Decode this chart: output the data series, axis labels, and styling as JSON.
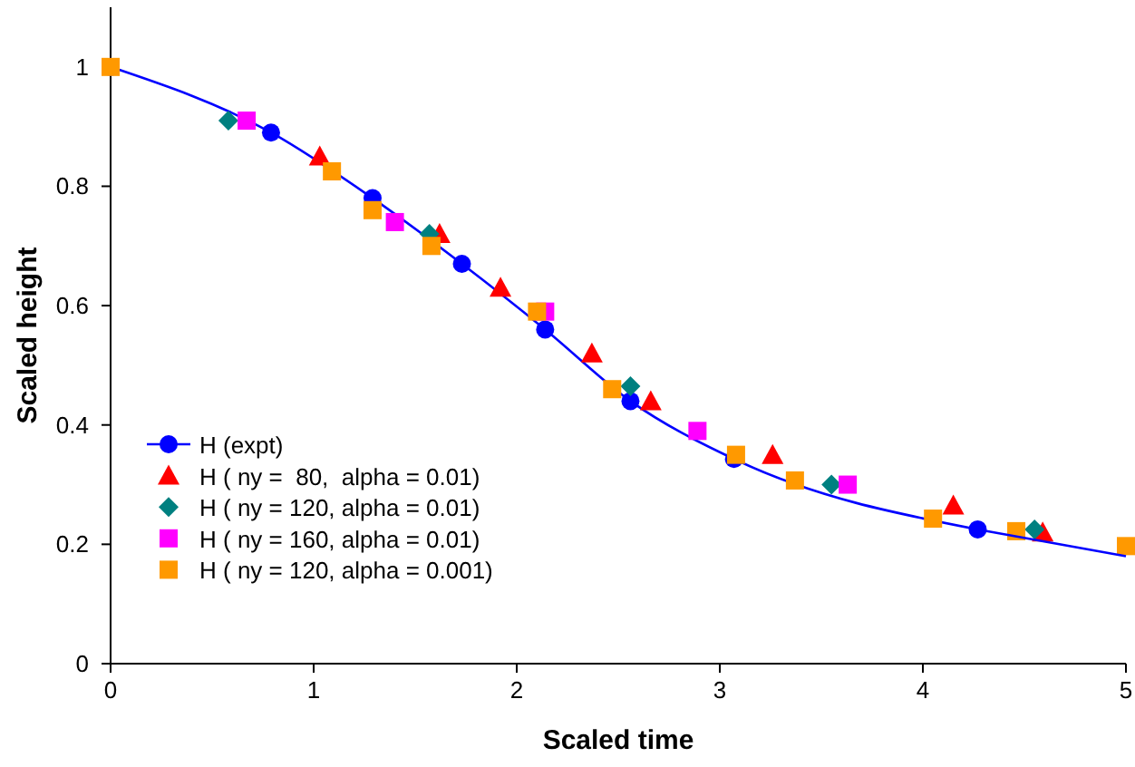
{
  "chart_data": {
    "type": "scatter",
    "xlabel": "Scaled time",
    "ylabel": "Scaled height",
    "xlim": [
      0,
      5
    ],
    "ylim": [
      0,
      1.1
    ],
    "xticks": [
      0,
      1,
      2,
      3,
      4,
      5
    ],
    "yticks": [
      0,
      0.2,
      0.4,
      0.6,
      0.8,
      1
    ],
    "grid": false,
    "legend": "bottom left",
    "series": [
      {
        "name": "H (expt)",
        "type": "line",
        "marker": "circle",
        "color": "#0000ff",
        "x": [
          0,
          0.79,
          1.29,
          1.73,
          2.14,
          2.56,
          3.07,
          4.27
        ],
        "values": [
          1,
          0.89,
          0.78,
          0.67,
          0.56,
          0.44,
          0.343,
          0.225
        ]
      },
      {
        "name": "H ( ny =  80,  alpha = 0.01)",
        "type": "scatter",
        "marker": "triangle",
        "color": "#ff0000",
        "x": [
          1.03,
          1.62,
          1.92,
          2.37,
          2.66,
          3.26,
          4.15,
          4.59
        ],
        "values": [
          0.85,
          0.72,
          0.63,
          0.52,
          0.44,
          0.35,
          0.265,
          0.22
        ]
      },
      {
        "name": "H ( ny = 120, alpha = 0.01)",
        "type": "scatter",
        "marker": "diamond",
        "color": "#008080",
        "x": [
          0.58,
          1.57,
          2.56,
          3.55,
          4.55
        ],
        "values": [
          0.91,
          0.72,
          0.465,
          0.3,
          0.225
        ]
      },
      {
        "name": "H ( ny = 160, alpha = 0.01)",
        "type": "scatter",
        "marker": "square",
        "color": "#ff00ff",
        "x": [
          0.67,
          1.4,
          2.14,
          2.89,
          3.63
        ],
        "values": [
          0.91,
          0.74,
          0.59,
          0.39,
          0.3
        ]
      },
      {
        "name": "H ( ny = 120, alpha = 0.001)",
        "type": "scatter",
        "marker": "square",
        "color": "#ff9900",
        "x": [
          0,
          1.09,
          1.29,
          1.58,
          2.1,
          2.47,
          3.08,
          3.37,
          4.05,
          4.46,
          5
        ],
        "values": [
          1,
          0.825,
          0.76,
          0.7,
          0.59,
          0.46,
          0.35,
          0.307,
          0.243,
          0.222,
          0.197
        ]
      },
      {
        "type": "line",
        "marker": "none",
        "color": "#0000ff",
        "x": [
          4.27,
          5
        ],
        "values": [
          0.225,
          0.18
        ]
      }
    ]
  }
}
